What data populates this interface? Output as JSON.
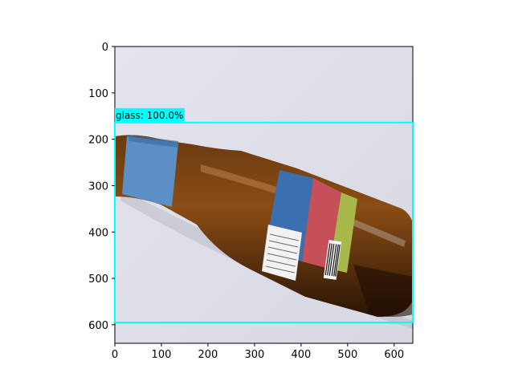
{
  "image": {
    "subject": "brown glass bottle with blue and pink label on white background",
    "background_color": "#dcdce6"
  },
  "axes": {
    "x_ticks": [
      "0",
      "100",
      "200",
      "300",
      "400",
      "500",
      "600"
    ],
    "y_ticks": [
      "0",
      "100",
      "200",
      "300",
      "400",
      "500",
      "600"
    ],
    "x_range": [
      0,
      640
    ],
    "y_range": [
      640,
      0
    ]
  },
  "detections": [
    {
      "label_text": "glass: 100.0%",
      "box_color": "#00ffff",
      "box_data": {
        "x0": 0,
        "y0": 164,
        "x1": 640,
        "y1": 595
      }
    }
  ]
}
